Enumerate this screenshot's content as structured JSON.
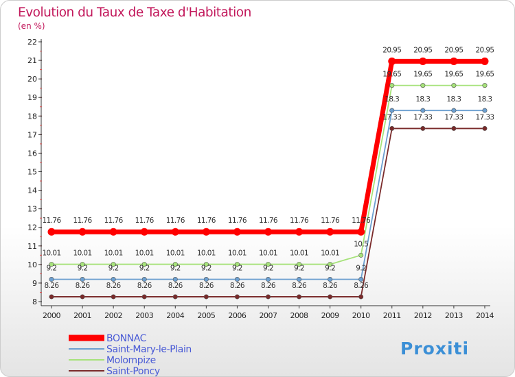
{
  "chart_data": {
    "type": "line",
    "title": "Evolution du Taux de Taxe d'Habitation",
    "subtitle": "(en %)",
    "x": [
      "2000",
      "2001",
      "2002",
      "2003",
      "2004",
      "2005",
      "2006",
      "2007",
      "2008",
      "2009",
      "2010",
      "2011",
      "2012",
      "2013",
      "2014"
    ],
    "ylim": [
      8,
      22
    ],
    "yticks": [
      8,
      9,
      10,
      11,
      12,
      13,
      14,
      15,
      16,
      17,
      18,
      19,
      20,
      21,
      22
    ],
    "grid": false,
    "legend_placement": "bottom-left",
    "series": [
      {
        "name": "BONNAC",
        "color": "#ff0000",
        "values": [
          11.76,
          11.76,
          11.76,
          11.76,
          11.76,
          11.76,
          11.76,
          11.76,
          11.76,
          11.76,
          11.76,
          20.95,
          20.95,
          20.95,
          20.95
        ],
        "labels": [
          "11.76",
          "11.76",
          "11.76",
          "11.76",
          "11.76",
          "11.76",
          "11.76",
          "11.76",
          "11.76",
          "11.76",
          "11.76",
          "20.95",
          "20.95",
          "20.95",
          "20.95"
        ]
      },
      {
        "name": "Saint-Mary-le-Plain",
        "color": "#6c9fd0",
        "values": [
          9.2,
          9.2,
          9.2,
          9.2,
          9.2,
          9.2,
          9.2,
          9.2,
          9.2,
          9.2,
          9.2,
          18.3,
          18.3,
          18.3,
          18.3
        ],
        "labels": [
          "9.2",
          "9.2",
          "9.2",
          "9.2",
          "9.2",
          "9.2",
          "9.2",
          "9.2",
          "9.2",
          "9.2",
          "9.2",
          "18.3",
          "18.3",
          "18.3",
          "18.3"
        ]
      },
      {
        "name": "Molompize",
        "color": "#a6e27a",
        "values": [
          10.01,
          10.01,
          10.01,
          10.01,
          10.01,
          10.01,
          10.01,
          10.01,
          10.01,
          10.01,
          10.5,
          19.65,
          19.65,
          19.65,
          19.65
        ],
        "labels": [
          "10.01",
          "10.01",
          "10.01",
          "10.01",
          "10.01",
          "10.01",
          "10.01",
          "10.01",
          "10.01",
          "10.01",
          "10.5",
          "19.65",
          "19.65",
          "19.65",
          "19.65"
        ]
      },
      {
        "name": "Saint-Poncy",
        "color": "#7a2a2a",
        "values": [
          8.26,
          8.26,
          8.26,
          8.26,
          8.26,
          8.26,
          8.26,
          8.26,
          8.26,
          8.26,
          8.26,
          17.33,
          17.33,
          17.33,
          17.33
        ],
        "labels": [
          "8.26",
          "8.26",
          "8.26",
          "8.26",
          "8.26",
          "8.26",
          "8.26",
          "8.26",
          "8.26",
          "8.26",
          "8.26",
          "17.33",
          "17.33",
          "17.33",
          "17.33"
        ]
      }
    ]
  },
  "logo": {
    "text": "Proxiti"
  }
}
